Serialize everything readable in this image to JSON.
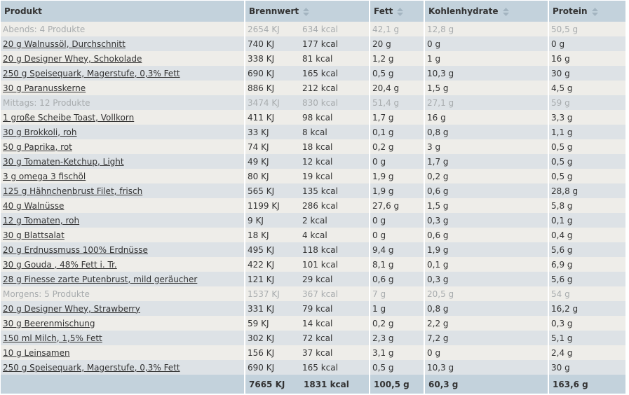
{
  "headers": {
    "produkt": "Produkt",
    "brennwert": "Brennwert",
    "fett": "Fett",
    "kohlenhydrate": "Kohlenhydrate",
    "protein": "Protein"
  },
  "colors": {
    "header_bg": "#c3d2dc",
    "row_light": "#eeede9",
    "row_dark": "#dde2e6",
    "group_text": "#a8acae"
  },
  "rows": [
    {
      "type": "group",
      "name": "Abends: 4 Produkte",
      "kj": "2654 KJ",
      "kcal": "634 kcal",
      "fett": "42,1 g",
      "kh": "12,8 g",
      "protein": "50,5 g"
    },
    {
      "type": "item",
      "name": "20 g Walnussöl, Durchschnitt",
      "kj": "740 KJ",
      "kcal": "177 kcal",
      "fett": "20 g",
      "kh": "0 g",
      "protein": "0 g"
    },
    {
      "type": "item",
      "name": "20 g Designer Whey, Schokolade",
      "kj": "338 KJ",
      "kcal": "81 kcal",
      "fett": "1,2 g",
      "kh": "1 g",
      "protein": "16 g"
    },
    {
      "type": "item",
      "name": "250 g Speisequark, Magerstufe, 0,3% Fett",
      "kj": "690 KJ",
      "kcal": "165 kcal",
      "fett": "0,5 g",
      "kh": "10,3 g",
      "protein": "30 g"
    },
    {
      "type": "item",
      "name": "30 g Paranusskerne",
      "kj": "886 KJ",
      "kcal": "212 kcal",
      "fett": "20,4 g",
      "kh": "1,5 g",
      "protein": "4,5 g"
    },
    {
      "type": "group",
      "name": "Mittags: 12 Produkte",
      "kj": "3474 KJ",
      "kcal": "830 kcal",
      "fett": "51,4 g",
      "kh": "27,1 g",
      "protein": "59 g"
    },
    {
      "type": "item",
      "name": "1 große Scheibe Toast, Vollkorn",
      "kj": "411 KJ",
      "kcal": "98 kcal",
      "fett": "1,7 g",
      "kh": "16 g",
      "protein": "3,3 g"
    },
    {
      "type": "item",
      "name": "30 g Brokkoli, roh",
      "kj": "33 KJ",
      "kcal": "8 kcal",
      "fett": "0,1 g",
      "kh": "0,8 g",
      "protein": "1,1 g"
    },
    {
      "type": "item",
      "name": "50 g Paprika, rot",
      "kj": "74 KJ",
      "kcal": "18 kcal",
      "fett": "0,2 g",
      "kh": "3 g",
      "protein": "0,5 g"
    },
    {
      "type": "item",
      "name": "30 g Tomaten-Ketchup, Light",
      "kj": "49 KJ",
      "kcal": "12 kcal",
      "fett": "0 g",
      "kh": "1,7 g",
      "protein": "0,5 g"
    },
    {
      "type": "item",
      "name": "3 g omega 3 fischöl",
      "kj": "80 KJ",
      "kcal": "19 kcal",
      "fett": "1,9 g",
      "kh": "0,2 g",
      "protein": "0,5 g"
    },
    {
      "type": "item",
      "name": "125 g Hähnchenbrust Filet, frisch",
      "kj": "565 KJ",
      "kcal": "135 kcal",
      "fett": "1,9 g",
      "kh": "0,6 g",
      "protein": "28,8 g"
    },
    {
      "type": "item",
      "name": "40 g Walnüsse",
      "kj": "1199 KJ",
      "kcal": "286 kcal",
      "fett": "27,6 g",
      "kh": "1,5 g",
      "protein": "5,8 g"
    },
    {
      "type": "item",
      "name": "12 g Tomaten, roh",
      "kj": "9 KJ",
      "kcal": "2 kcal",
      "fett": "0 g",
      "kh": "0,3 g",
      "protein": "0,1 g"
    },
    {
      "type": "item",
      "name": "30 g Blattsalat",
      "kj": "18 KJ",
      "kcal": "4 kcal",
      "fett": "0 g",
      "kh": "0,6 g",
      "protein": "0,4 g"
    },
    {
      "type": "item",
      "name": "20 g Erdnussmuss 100% Erdnüsse",
      "kj": "495 KJ",
      "kcal": "118 kcal",
      "fett": "9,4 g",
      "kh": "1,9 g",
      "protein": "5,6 g"
    },
    {
      "type": "item",
      "name": "30 g Gouda , 48% Fett i. Tr.",
      "kj": "422 KJ",
      "kcal": "101 kcal",
      "fett": "8,1 g",
      "kh": "0,1 g",
      "protein": "6,9 g"
    },
    {
      "type": "item",
      "name": "28 g Finesse zarte Putenbrust, mild geräucher",
      "kj": "121 KJ",
      "kcal": "29 kcal",
      "fett": "0,6 g",
      "kh": "0,3 g",
      "protein": "5,6 g"
    },
    {
      "type": "group",
      "name": "Morgens: 5 Produkte",
      "kj": "1537 KJ",
      "kcal": "367 kcal",
      "fett": "7 g",
      "kh": "20,5 g",
      "protein": "54 g"
    },
    {
      "type": "item",
      "name": "20 g Designer Whey, Strawberry",
      "kj": "331 KJ",
      "kcal": "79 kcal",
      "fett": "1 g",
      "kh": "0,8 g",
      "protein": "16,2 g"
    },
    {
      "type": "item",
      "name": "30 g Beerenmischung",
      "kj": "59 KJ",
      "kcal": "14 kcal",
      "fett": "0,2 g",
      "kh": "2,2 g",
      "protein": "0,3 g"
    },
    {
      "type": "item",
      "name": "150 ml Milch, 1,5% Fett",
      "kj": "302 KJ",
      "kcal": "72 kcal",
      "fett": "2,3 g",
      "kh": "7,2 g",
      "protein": "5,1 g"
    },
    {
      "type": "item",
      "name": "10 g Leinsamen",
      "kj": "156 KJ",
      "kcal": "37 kcal",
      "fett": "3,1 g",
      "kh": "0 g",
      "protein": "2,4 g"
    },
    {
      "type": "item",
      "name": "250 g Speisequark, Magerstufe, 0,3% Fett",
      "kj": "690 KJ",
      "kcal": "165 kcal",
      "fett": "0,5 g",
      "kh": "10,3 g",
      "protein": "30 g"
    }
  ],
  "totals": {
    "kj": "7665 KJ",
    "kcal": "1831 kcal",
    "fett": "100,5 g",
    "kh": "60,3 g",
    "protein": "163,6 g"
  }
}
